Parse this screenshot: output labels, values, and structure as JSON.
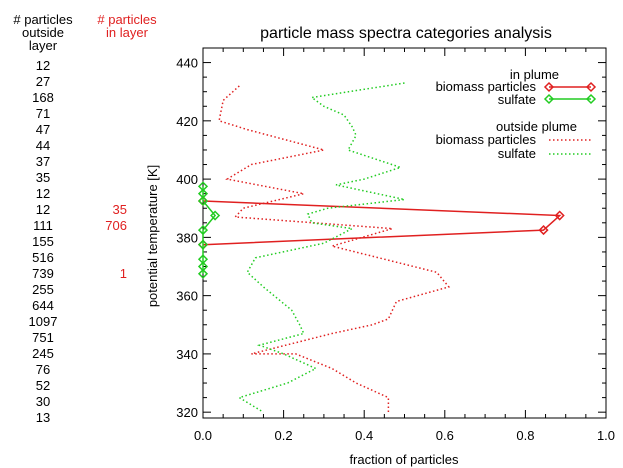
{
  "left_table": {
    "header_outside": [
      "# particles",
      "outside",
      "layer"
    ],
    "header_in": [
      "# particles",
      "in layer"
    ],
    "rows": [
      {
        "outside": "12",
        "in": ""
      },
      {
        "outside": "27",
        "in": ""
      },
      {
        "outside": "168",
        "in": ""
      },
      {
        "outside": "71",
        "in": ""
      },
      {
        "outside": "47",
        "in": ""
      },
      {
        "outside": "44",
        "in": ""
      },
      {
        "outside": "37",
        "in": ""
      },
      {
        "outside": "35",
        "in": ""
      },
      {
        "outside": "12",
        "in": ""
      },
      {
        "outside": "12",
        "in": "35"
      },
      {
        "outside": "111",
        "in": "706"
      },
      {
        "outside": "155",
        "in": ""
      },
      {
        "outside": "516",
        "in": ""
      },
      {
        "outside": "739",
        "in": "1"
      },
      {
        "outside": "255",
        "in": ""
      },
      {
        "outside": "644",
        "in": ""
      },
      {
        "outside": "1097",
        "in": ""
      },
      {
        "outside": "751",
        "in": ""
      },
      {
        "outside": "245",
        "in": ""
      },
      {
        "outside": "76",
        "in": ""
      },
      {
        "outside": "52",
        "in": ""
      },
      {
        "outside": "30",
        "in": ""
      },
      {
        "outside": "13",
        "in": ""
      }
    ]
  },
  "colors": {
    "red": "#e02020",
    "green": "#22cc22",
    "text": "#000000"
  },
  "chart_data": {
    "type": "line",
    "title": "particle mass spectra categories analysis",
    "xlabel": "fraction of particles",
    "ylabel": "potential temperature [K]",
    "xlim": [
      0.0,
      1.0
    ],
    "ylim": [
      318,
      445
    ],
    "xticks": [
      0.0,
      0.2,
      0.4,
      0.6,
      0.8,
      1.0
    ],
    "xtick_labels": [
      "0.0",
      "0.2",
      "0.4",
      "0.6",
      "0.8",
      "1.0"
    ],
    "yticks": [
      320,
      340,
      360,
      380,
      400,
      420,
      440
    ],
    "ytick_labels": [
      "320",
      "340",
      "360",
      "380",
      "400",
      "420",
      "440"
    ],
    "grid": false,
    "legend": {
      "position": "top-right",
      "group1_title": "in plume",
      "group2_title": "outside plume",
      "biomass_label": "biomass particles",
      "sulfate_label": "sulfate"
    },
    "series": [
      {
        "name": "biomass particles",
        "group": "in plume",
        "color": "#e02020",
        "style": "solid",
        "marker": "diamond",
        "x": [
          0.0,
          0.885,
          0.845,
          0.0
        ],
        "y": [
          392.5,
          387.5,
          382.5,
          377.5
        ]
      },
      {
        "name": "sulfate",
        "group": "in plume",
        "color": "#22cc22",
        "style": "solid",
        "marker": "diamond",
        "x": [
          0.0,
          0.0,
          0.0,
          0.03,
          0.0,
          0.0,
          0.0,
          0.0,
          0.0
        ],
        "y": [
          397.5,
          395.0,
          392.5,
          387.5,
          382.5,
          377.5,
          372.5,
          370.0,
          367.5
        ]
      },
      {
        "name": "biomass particles",
        "group": "outside plume",
        "color": "#e02020",
        "style": "dotted",
        "x": [
          0.09,
          0.05,
          0.04,
          0.11,
          0.3,
          0.12,
          0.06,
          0.25,
          0.1,
          0.08,
          0.47,
          0.32,
          0.58,
          0.61,
          0.48,
          0.46,
          0.42,
          0.32,
          0.12,
          0.23,
          0.32,
          0.38,
          0.46,
          0.46
        ],
        "y": [
          432,
          427,
          420,
          417,
          410,
          405,
          400,
          395,
          390,
          387,
          383,
          377,
          368,
          363,
          358,
          352,
          350,
          347,
          340,
          340,
          335,
          330,
          325,
          320
        ]
      },
      {
        "name": "sulfate",
        "group": "outside plume",
        "color": "#22cc22",
        "style": "dotted",
        "x": [
          0.5,
          0.27,
          0.3,
          0.35,
          0.37,
          0.38,
          0.36,
          0.49,
          0.4,
          0.33,
          0.5,
          0.31,
          0.26,
          0.27,
          0.37,
          0.3,
          0.13,
          0.11,
          0.15,
          0.22,
          0.24,
          0.25,
          0.14,
          0.2,
          0.28,
          0.21,
          0.09,
          0.15
        ],
        "y": [
          433,
          428,
          425,
          422,
          418,
          415,
          410,
          404,
          400,
          398,
          393,
          390,
          388,
          385,
          383,
          378,
          373,
          368,
          363,
          355,
          350,
          347,
          343,
          340,
          335,
          330,
          325,
          320
        ]
      }
    ]
  }
}
